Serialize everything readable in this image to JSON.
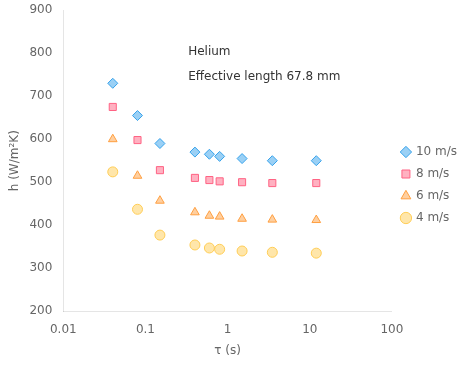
{
  "chart_data": {
    "type": "scatter",
    "series": [
      {
        "name": "10 m/s",
        "marker": "diamond",
        "x": [
          0.04,
          0.08,
          0.15,
          0.4,
          0.6,
          0.8,
          1.5,
          3.5,
          12
        ],
        "values": [
          730,
          655,
          590,
          570,
          565,
          560,
          555,
          550,
          550
        ]
      },
      {
        "name": "8 m/s",
        "marker": "square",
        "x": [
          0.04,
          0.08,
          0.15,
          0.4,
          0.6,
          0.8,
          1.5,
          3.5,
          12
        ],
        "values": [
          675,
          598,
          528,
          510,
          505,
          502,
          500,
          498,
          498
        ]
      },
      {
        "name": "6 m/s",
        "marker": "triangle",
        "x": [
          0.04,
          0.08,
          0.15,
          0.4,
          0.6,
          0.8,
          1.5,
          3.5,
          12
        ],
        "values": [
          600,
          515,
          457,
          430,
          422,
          420,
          415,
          413,
          412
        ]
      },
      {
        "name": "4 m/s",
        "marker": "circle",
        "x": [
          0.04,
          0.08,
          0.15,
          0.4,
          0.6,
          0.8,
          1.5,
          3.5,
          12
        ],
        "values": [
          524,
          437,
          377,
          354,
          347,
          344,
          340,
          337,
          335
        ]
      }
    ],
    "xlabel": "τ (s)",
    "ylabel": "h (W/m²K)",
    "annotations": [
      "Helium",
      "Effective length 67.8 mm"
    ],
    "log": "x",
    "xlim": [
      0.01,
      100
    ],
    "xticks": [
      0.01,
      0.1,
      1,
      10,
      100
    ],
    "ylim": [
      200,
      900
    ],
    "yticks": [
      200,
      300,
      400,
      500,
      600,
      700,
      800,
      900
    ],
    "grid": false,
    "legend": "right"
  }
}
